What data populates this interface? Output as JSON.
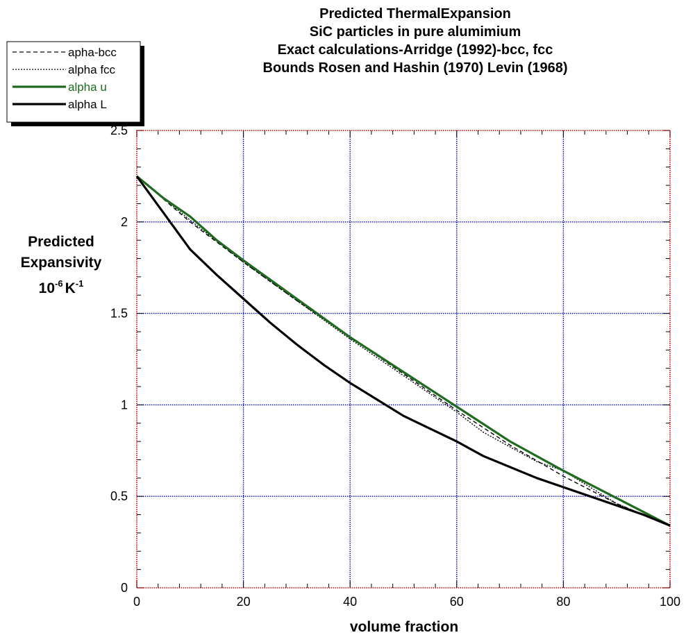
{
  "chart_data": {
    "type": "line",
    "title": "Predicted ThermalExpansion",
    "subtitle_lines": [
      "SiC particles in pure alumimium",
      "Exact calculations-Arridge (1992)-bcc, fcc",
      "Bounds Rosen and Hashin (1970) Levin (1968)"
    ],
    "xlabel": "volume fraction",
    "ylabel_lines": [
      "Predicted",
      "Expansivity"
    ],
    "ylabel_units": {
      "base": "10",
      "exp1": "-6",
      "unit": "K",
      "exp2": "-1"
    },
    "xlim": [
      0,
      100
    ],
    "ylim": [
      0,
      2.5
    ],
    "xticks": [
      0,
      20,
      40,
      60,
      80,
      100
    ],
    "yticks": [
      0,
      0.5,
      1,
      1.5,
      2,
      2.5
    ],
    "xtick_labels": [
      "0",
      "20",
      "40",
      "60",
      "80",
      "100"
    ],
    "ytick_labels": [
      "0",
      "0.5",
      "1",
      "1.5",
      "2",
      "2.5"
    ],
    "grid": true,
    "legend_position": "top-left",
    "colors": {
      "frame": "#cc0000",
      "grid": "#0000cc",
      "green": "#1f6b1f",
      "black": "#000000"
    },
    "series": [
      {
        "name": "apha-bcc",
        "style": "dashed",
        "x": [
          0,
          10,
          20,
          30,
          40,
          50,
          60,
          70,
          80,
          90,
          100
        ],
        "y": [
          2.25,
          2.0,
          1.78,
          1.57,
          1.37,
          1.17,
          0.97,
          0.78,
          0.61,
          0.46,
          0.34
        ]
      },
      {
        "name": "alpha fcc",
        "style": "dotted",
        "x": [
          0,
          10,
          20,
          30,
          40,
          50,
          60,
          65,
          70,
          75,
          80,
          90,
          100
        ],
        "y": [
          2.25,
          2.01,
          1.78,
          1.57,
          1.36,
          1.16,
          0.96,
          0.85,
          0.77,
          0.69,
          0.64,
          0.46,
          0.34
        ]
      },
      {
        "name": "alpha u",
        "style": "solid-green",
        "x": [
          0,
          5,
          10,
          15,
          20,
          30,
          40,
          50,
          60,
          70,
          80,
          90,
          100
        ],
        "y": [
          2.25,
          2.13,
          2.03,
          1.9,
          1.79,
          1.58,
          1.37,
          1.18,
          0.99,
          0.8,
          0.64,
          0.49,
          0.34
        ]
      },
      {
        "name": "alpha L",
        "style": "solid-black",
        "x": [
          0,
          5,
          10,
          15,
          20,
          25,
          30,
          35,
          40,
          45,
          50,
          55,
          60,
          65,
          70,
          75,
          80,
          85,
          90,
          95,
          100
        ],
        "y": [
          2.25,
          2.05,
          1.85,
          1.71,
          1.58,
          1.45,
          1.33,
          1.22,
          1.12,
          1.03,
          0.94,
          0.87,
          0.8,
          0.72,
          0.66,
          0.6,
          0.55,
          0.5,
          0.45,
          0.4,
          0.34
        ]
      }
    ]
  }
}
